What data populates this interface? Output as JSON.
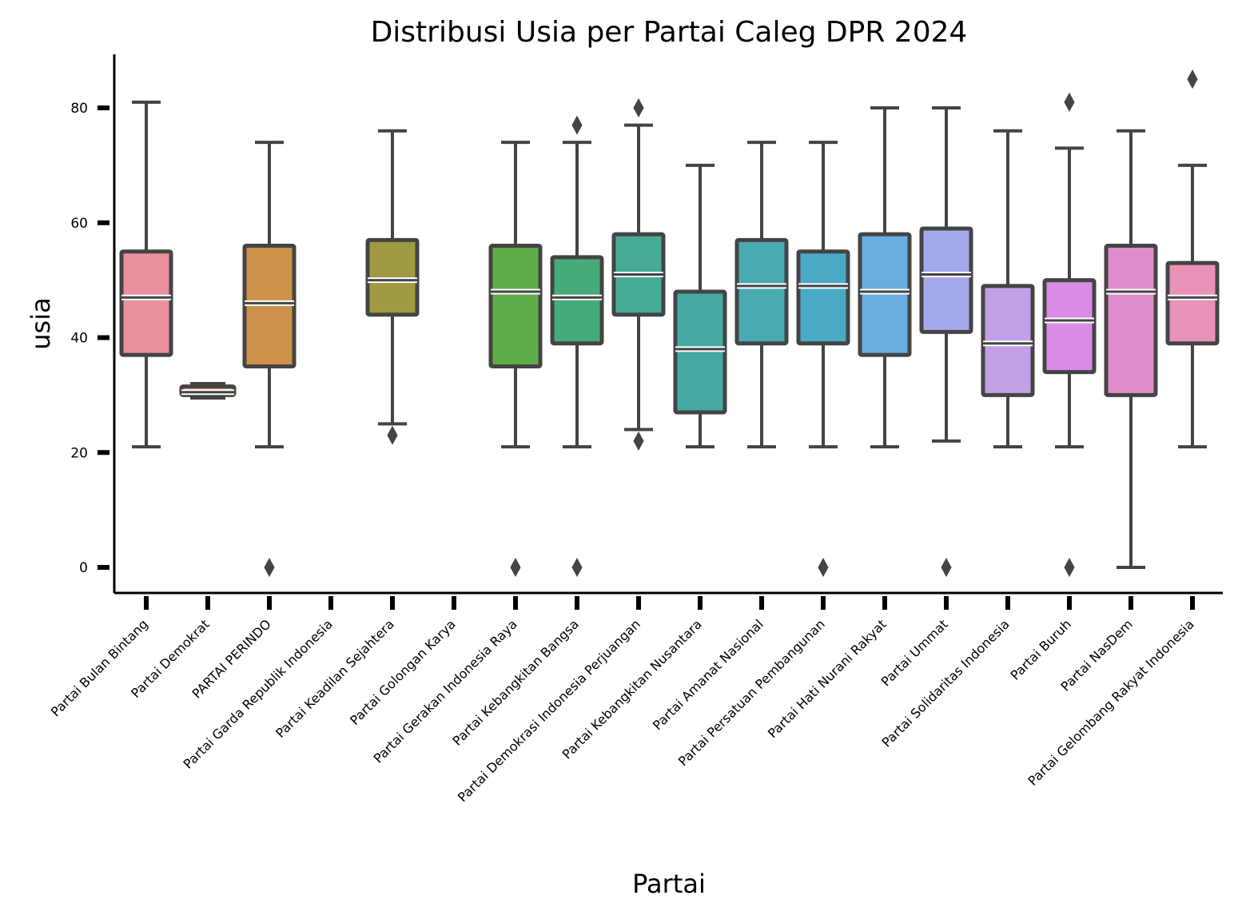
{
  "chart_data": {
    "type": "box",
    "title": "Distribusi Usia per Partai Caleg DPR 2024",
    "xlabel": "Partai",
    "ylabel": "usia",
    "ylim": [
      -4,
      89
    ],
    "yticks": [
      0,
      20,
      40,
      60,
      80
    ],
    "grid": false,
    "categories": [
      "Partai Bulan Bintang",
      "Partai Demokrat",
      "PARTAI PERINDO",
      "Partai Garda Republik Indonesia",
      "Partai Keadilan Sejahtera",
      "Partai Golongan Karya",
      "Partai Gerakan Indonesia Raya",
      "Partai Kebangkitan Bangsa",
      "Partai Demokrasi Indonesia Perjuangan",
      "Partai Kebangkitan Nusantara",
      "Partai Amanat Nasional",
      "Partai Persatuan Pembangunan",
      "Partai Hati Nurani Rakyat",
      "Partai Ummat",
      "Partai Solidaritas Indonesia",
      "Partai Buruh",
      "Partai NasDem",
      "Partai Gelombang Rakyat Indonesia"
    ],
    "boxes": [
      {
        "whislo": 21,
        "q1": 37,
        "med": 47,
        "q3": 55,
        "whishi": 81,
        "fliers": [],
        "color": "#e8919c"
      },
      {
        "whislo": 29.5,
        "q1": 30,
        "med": 30.5,
        "q3": 31.5,
        "whishi": 32,
        "fliers": [],
        "color": "#e89a6f"
      },
      {
        "whislo": 21,
        "q1": 35,
        "med": 46,
        "q3": 56,
        "whishi": 74,
        "fliers": [
          0
        ],
        "color": "#cc9249"
      },
      null,
      {
        "whislo": 25,
        "q1": 44,
        "med": 50,
        "q3": 57,
        "whishi": 76,
        "fliers": [
          23
        ],
        "color": "#a09a42"
      },
      null,
      {
        "whislo": 21,
        "q1": 35,
        "med": 48,
        "q3": 56,
        "whishi": 74,
        "fliers": [
          0
        ],
        "color": "#5eac47"
      },
      {
        "whislo": 21,
        "q1": 39,
        "med": 47,
        "q3": 54,
        "whishi": 74,
        "fliers": [
          0,
          77
        ],
        "color": "#46ab7a"
      },
      {
        "whislo": 24,
        "q1": 44,
        "med": 51,
        "q3": 58,
        "whishi": 77,
        "fliers": [
          22,
          80
        ],
        "color": "#46ab94"
      },
      {
        "whislo": 21,
        "q1": 27,
        "med": 38,
        "q3": 48,
        "whishi": 70,
        "fliers": [],
        "color": "#45a9a2"
      },
      {
        "whislo": 21,
        "q1": 39,
        "med": 49,
        "q3": 57,
        "whishi": 74,
        "fliers": [],
        "color": "#49aab3"
      },
      {
        "whislo": 21,
        "q1": 39,
        "med": 49,
        "q3": 55,
        "whishi": 74,
        "fliers": [
          0
        ],
        "color": "#4aa9c4"
      },
      {
        "whislo": 21,
        "q1": 37,
        "med": 48,
        "q3": 58,
        "whishi": 80,
        "fliers": [],
        "color": "#6aaee0"
      },
      {
        "whislo": 22,
        "q1": 41,
        "med": 51,
        "q3": 59,
        "whishi": 80,
        "fliers": [
          0
        ],
        "color": "#a3a9ea"
      },
      {
        "whislo": 21,
        "q1": 30,
        "med": 39,
        "q3": 49,
        "whishi": 76,
        "fliers": [],
        "color": "#c39fe8"
      },
      {
        "whislo": 21,
        "q1": 34,
        "med": 43,
        "q3": 50,
        "whishi": 73,
        "fliers": [
          0,
          81
        ],
        "color": "#da8be6"
      },
      {
        "whislo": 0,
        "q1": 30,
        "med": 48,
        "q3": 56,
        "whishi": 76,
        "fliers": [],
        "color": "#e08ccc"
      },
      {
        "whislo": 21,
        "q1": 39,
        "med": 47,
        "q3": 53,
        "whishi": 70,
        "fliers": [
          85
        ],
        "color": "#e892b7"
      }
    ]
  }
}
